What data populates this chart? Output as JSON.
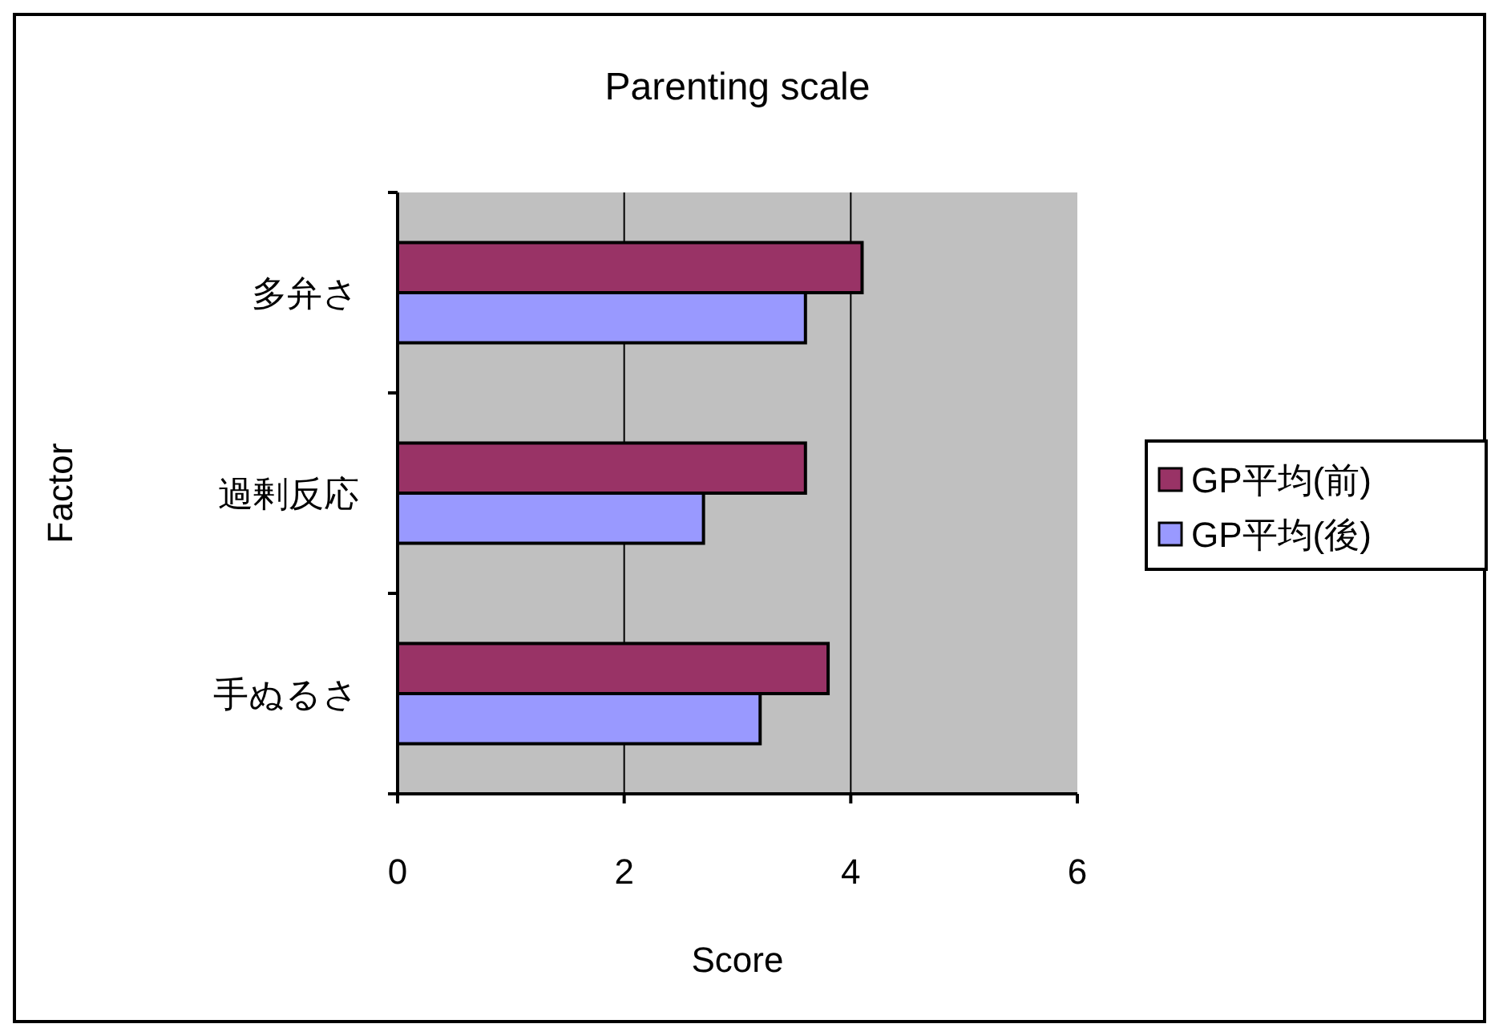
{
  "chart_data": {
    "type": "bar",
    "orientation": "horizontal",
    "title": "Parenting scale",
    "xlabel": "Score",
    "ylabel": "Factor",
    "categories": [
      "多弁さ",
      "過剰反応",
      "手ぬるさ"
    ],
    "series": [
      {
        "name": "GP平均(前)",
        "color": "#993366",
        "values": [
          4.1,
          3.6,
          3.8
        ]
      },
      {
        "name": "GP平均(後)",
        "color": "#9999ff",
        "values": [
          3.6,
          2.7,
          3.2
        ]
      }
    ],
    "xlim": [
      0,
      6
    ],
    "xticks": [
      0,
      2,
      4,
      6
    ],
    "grid": "x",
    "legend": "right"
  }
}
